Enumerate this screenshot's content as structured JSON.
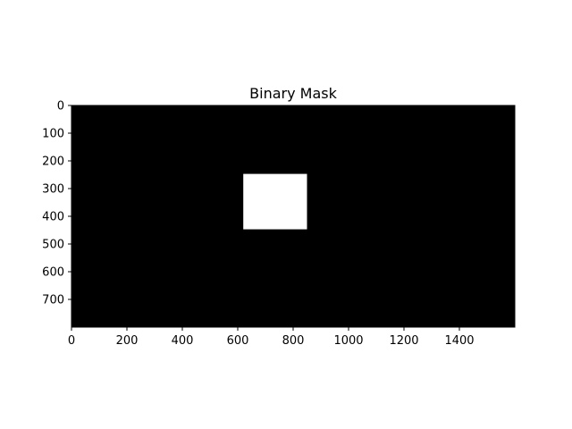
{
  "chart_data": {
    "type": "heatmap",
    "title": "Binary Mask",
    "xlabel": "",
    "ylabel": "",
    "image_size": [
      1600,
      800
    ],
    "xlim": [
      0,
      1600
    ],
    "ylim": [
      800,
      0
    ],
    "x_ticks": [
      0,
      200,
      400,
      600,
      800,
      1000,
      1200,
      1400
    ],
    "y_ticks": [
      0,
      100,
      200,
      300,
      400,
      500,
      600,
      700
    ],
    "colormap": "gray",
    "background_value": 0,
    "background_color": "#000000",
    "mask_color": "#ffffff",
    "regions": [
      {
        "value": 1,
        "x": [
          620,
          850
        ],
        "y": [
          247,
          447
        ]
      }
    ],
    "grid": false,
    "legend": "none"
  }
}
